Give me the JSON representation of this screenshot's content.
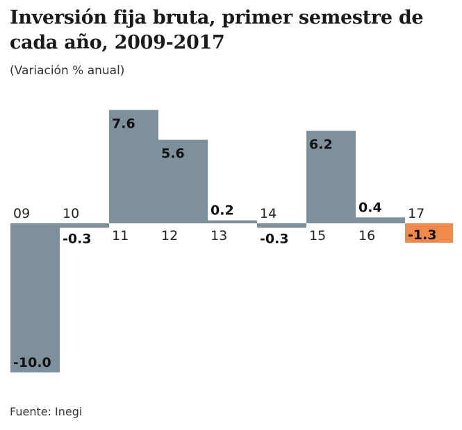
{
  "chart_data": {
    "type": "bar",
    "title": "Inversión fija bruta, primer semestre de cada año, 2009-2017",
    "subtitle": "(Variación % anual)",
    "categories": [
      "09",
      "10",
      "11",
      "12",
      "13",
      "14",
      "15",
      "16",
      "17"
    ],
    "values": [
      -10.0,
      -0.3,
      7.6,
      5.6,
      0.2,
      -0.3,
      6.2,
      0.4,
      -1.3
    ],
    "value_labels": [
      "-10.0",
      "-0.3",
      "7.6",
      "5.6",
      "0.2",
      "-0.3",
      "6.2",
      "0.4",
      "-1.3"
    ],
    "highlight_index": 8,
    "colors": {
      "bar": "#7e909c",
      "highlight": "#f08a4b"
    },
    "xlabel": "",
    "ylabel": "",
    "ylim": [
      -10,
      7.6
    ],
    "grid": false,
    "source": "Fuente: Inegi"
  }
}
